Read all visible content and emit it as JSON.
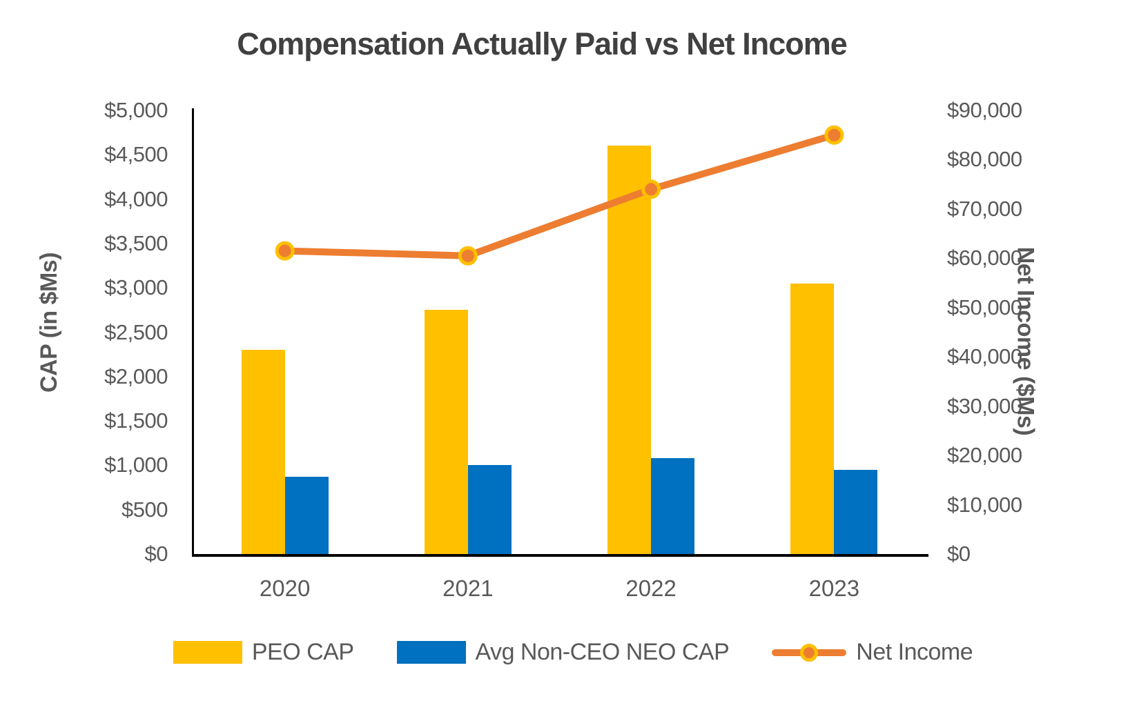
{
  "title": "Compensation Actually Paid vs Net Income",
  "chart_data": {
    "type": "bar+line combo",
    "categories": [
      "2020",
      "2021",
      "2022",
      "2023"
    ],
    "series": [
      {
        "name": "PEO CAP",
        "type": "bar",
        "axis": "left",
        "color": "#FFC000",
        "values": [
          2300,
          2750,
          4600,
          3050
        ]
      },
      {
        "name": "Avg Non-CEO NEO CAP",
        "type": "bar",
        "axis": "left",
        "color": "#0070C0",
        "values": [
          870,
          1000,
          1080,
          950
        ]
      },
      {
        "name": "Net Income",
        "type": "line",
        "axis": "right",
        "color": "#ED7D31",
        "marker_fill": "#ED7D31",
        "marker_ring": "#FFC000",
        "values": [
          61500,
          60500,
          74000,
          85000
        ]
      }
    ],
    "left_axis": {
      "label": "CAP (in $Ms)",
      "min": 0,
      "max": 5000,
      "step": 500,
      "format": "$#,##0"
    },
    "right_axis": {
      "label": "Net Income ($Ms)",
      "min": 0,
      "max": 90000,
      "step": 10000,
      "format": "$#,##0"
    },
    "legend_position": "bottom",
    "grid": false,
    "axis_color": "#000000",
    "text_color": "#595959",
    "title_color": "#404040"
  }
}
